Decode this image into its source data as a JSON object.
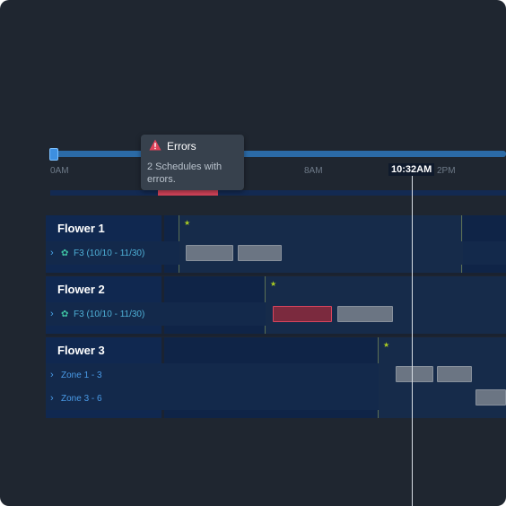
{
  "timeline": {
    "ticks": [
      "0AM",
      "8AM",
      "2PM"
    ],
    "current_time": "10:32AM"
  },
  "tooltip": {
    "title": "Errors",
    "icon": "warning-icon",
    "message": "2 Schedules with errors."
  },
  "colors": {
    "background": "#1f2630",
    "track": "#2b6aa6",
    "error": "#d6445a",
    "schedule_block": "#6b7583"
  },
  "groups": [
    {
      "title": "Flower 1",
      "rows": [
        {
          "label": "F3 (10/10 - 11/30)",
          "icon": "crop-sprout-icon"
        }
      ]
    },
    {
      "title": "Flower 2",
      "rows": [
        {
          "label": "F3 (10/10 - 11/30)",
          "icon": "crop-sprout-icon"
        }
      ]
    },
    {
      "title": "Flower 3",
      "rows": [
        {
          "label": "Zone 1 - 3"
        },
        {
          "label": "Zone 3 - 6"
        }
      ]
    }
  ]
}
